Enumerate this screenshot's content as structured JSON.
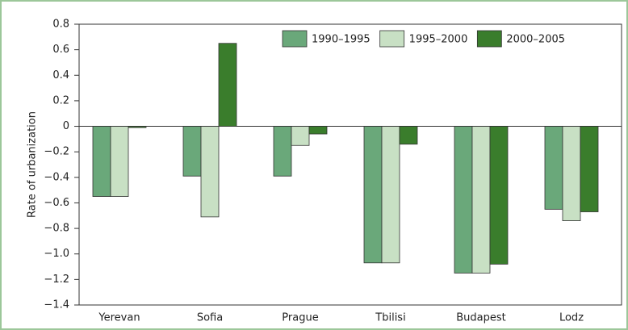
{
  "chart_data": {
    "type": "bar",
    "y_label": "Rate of urbanization",
    "categories": [
      "Yerevan",
      "Sofia",
      "Prague",
      "Tbilisi",
      "Budapest",
      "Lodz"
    ],
    "series": [
      {
        "name": "1990–1995",
        "color": "#6aa87a",
        "values": [
          -0.55,
          -0.39,
          -0.39,
          -1.07,
          -1.15,
          -0.65
        ]
      },
      {
        "name": "1995–2000",
        "color": "#c8e0c4",
        "values": [
          -0.55,
          -0.71,
          -0.15,
          -1.07,
          -1.15,
          -0.74
        ]
      },
      {
        "name": "2000–2005",
        "color": "#3a7d2c",
        "values": [
          -0.01,
          0.65,
          -0.06,
          -0.14,
          -1.08,
          -0.67
        ]
      }
    ],
    "ylim": [
      -1.4,
      0.8
    ],
    "yticks": [
      0.8,
      0.6,
      0.4,
      0.2,
      0,
      {
        "value": -0.2,
        "label": "−0.2"
      },
      {
        "value": -0.4,
        "label": "−0.4"
      },
      {
        "value": -0.6,
        "label": "−0.6"
      },
      {
        "value": -0.8,
        "label": "−0.8"
      },
      {
        "value": -1.0,
        "label": "−1.0"
      },
      {
        "value": -1.2,
        "label": "−1.2"
      },
      {
        "value": -1.4,
        "label": "−1.4"
      }
    ],
    "legend": "top-right"
  }
}
